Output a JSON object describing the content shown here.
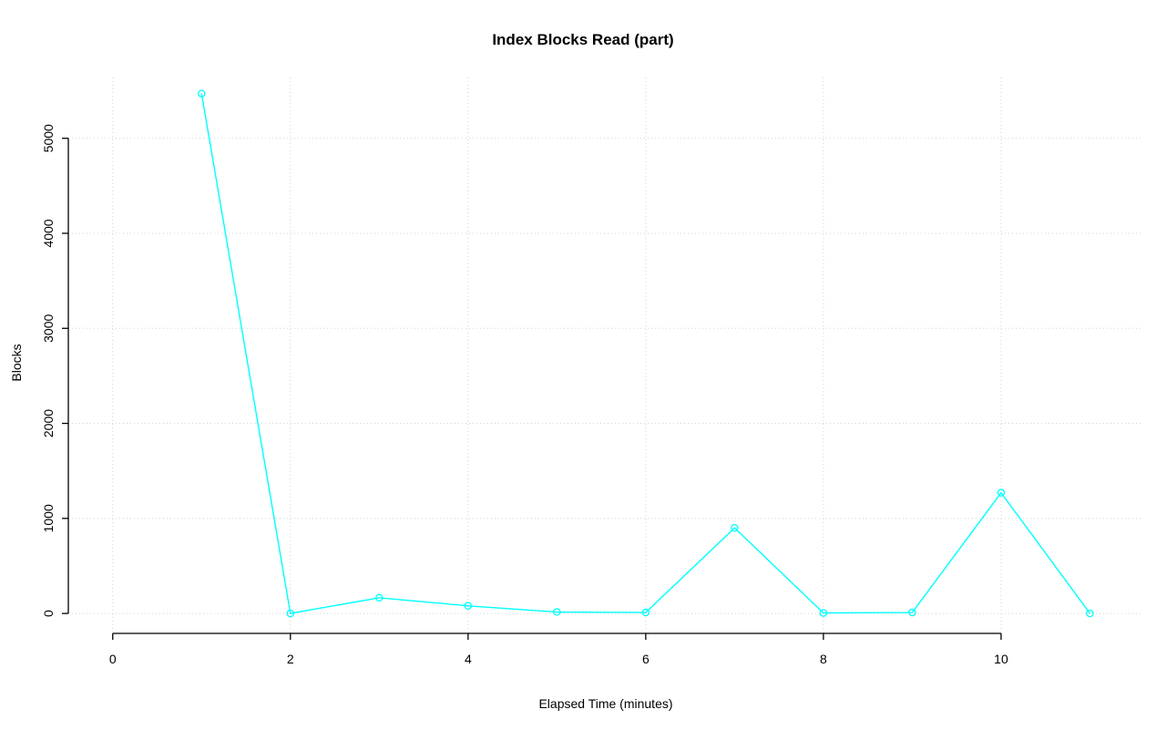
{
  "chart_data": {
    "type": "line",
    "title": "Index Blocks Read (part)",
    "xlabel": "Elapsed Time (minutes)",
    "ylabel": "Blocks",
    "x": [
      1,
      2,
      3,
      4,
      5,
      6,
      7,
      8,
      9,
      10,
      11
    ],
    "series": [
      {
        "name": "Index Blocks Read",
        "values": [
          5470,
          0,
          165,
          80,
          15,
          10,
          900,
          5,
          10,
          1270,
          0
        ],
        "color": "#00FFFF",
        "marker": "open-circle"
      }
    ],
    "layout": {
      "xlim": [
        -0.5,
        11.6
      ],
      "ylim": [
        -210,
        5640
      ],
      "xticks": [
        0,
        2,
        4,
        6,
        8,
        10
      ],
      "yticks": [
        0,
        1000,
        2000,
        3000,
        4000,
        5000
      ],
      "grid": true,
      "grid_color": "#D3D3D3",
      "grid_dash": "1,3",
      "axis_color": "#000000",
      "legend": "none"
    }
  }
}
